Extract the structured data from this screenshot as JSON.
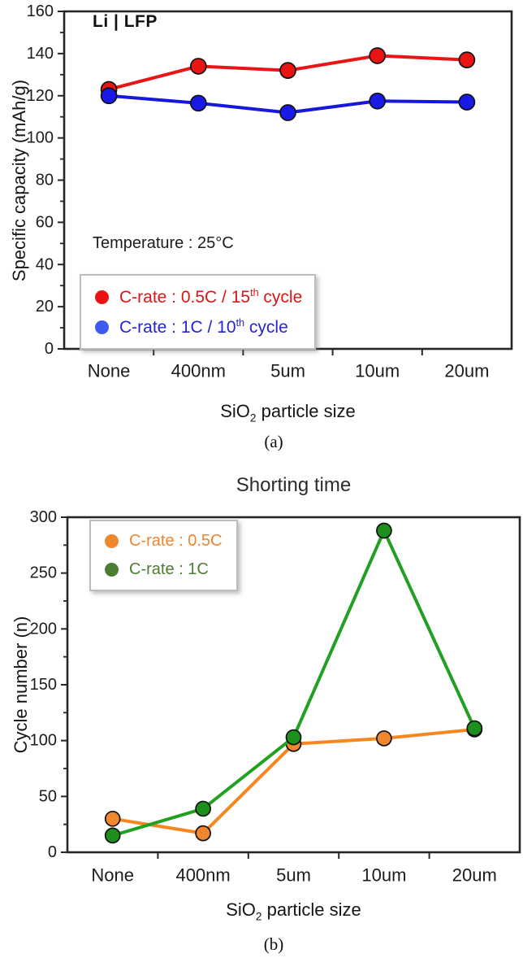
{
  "figure": {
    "background": "#ffffff",
    "axis_color": "#262626",
    "captions": {
      "a": "(a)",
      "b": "(b)"
    }
  },
  "chart_data": [
    {
      "key": "a",
      "type": "line",
      "caption": "(a)",
      "inner_title": "Li | LFP",
      "annotation": "Temperature : 25°C",
      "xlabel": "SiO2 particle size",
      "xlabel_parts": {
        "base": "SiO",
        "sub": "2",
        "rest": " particle size"
      },
      "ylabel": "Specific capacity (mAh/g)",
      "categories": [
        "None",
        "400nm",
        "5um",
        "10um",
        "20um"
      ],
      "ylim": [
        0,
        160
      ],
      "yticks": [
        0,
        20,
        40,
        60,
        80,
        100,
        120,
        140,
        160
      ],
      "yminor_step": 10,
      "grid": false,
      "legend_position": "bottom-left",
      "series": [
        {
          "label": "C-rate : 0.5C / 15th cycle",
          "label_parts": {
            "main": "C-rate : 0.5C / 15",
            "sup": "th",
            "tail": " cycle"
          },
          "line_color": "#e91515",
          "marker_color": "#e91515",
          "legend_dot_color": "#ee1111",
          "text_color": "#e01414",
          "values": [
            123,
            134,
            132,
            139,
            137
          ]
        },
        {
          "label": "C-rate : 1C / 10th cycle",
          "label_parts": {
            "main": "C-rate : 1C / 10",
            "sup": "th",
            "tail": " cycle"
          },
          "line_color": "#1717dd",
          "marker_color": "#1a1ae6",
          "legend_dot_color": "#3d5af1",
          "text_color": "#2424d2",
          "values": [
            120,
            116.5,
            112,
            117.5,
            117
          ]
        }
      ]
    },
    {
      "key": "b",
      "type": "line",
      "title": "Shorting time",
      "caption": "(b)",
      "xlabel": "SiO2 particle size",
      "xlabel_parts": {
        "base": "SiO",
        "sub": "2",
        "rest": " particle size"
      },
      "ylabel": "Cycle number (n)",
      "categories": [
        "None",
        "400nm",
        "5um",
        "10um",
        "20um"
      ],
      "ylim": [
        0,
        300
      ],
      "yticks": [
        0,
        50,
        100,
        150,
        200,
        250,
        300
      ],
      "yminor_step": 25,
      "grid": false,
      "legend_position": "top-left",
      "series": [
        {
          "label": "C-rate : 0.5C",
          "label_parts": {
            "main": "C-rate : 0.5C",
            "sup": "",
            "tail": ""
          },
          "line_color": "#f6871f",
          "marker_color": "#f0862e",
          "legend_dot_color": "#f0862e",
          "text_color": "#ef8432",
          "values": [
            30,
            17,
            97,
            102,
            110
          ]
        },
        {
          "label": "C-rate : 1C",
          "label_parts": {
            "main": "C-rate : 1C",
            "sup": "",
            "tail": ""
          },
          "line_color": "#22a022",
          "marker_color": "#1d8f1d",
          "legend_dot_color": "#4d7c33",
          "text_color": "#4d7c33",
          "values": [
            15,
            39,
            103,
            288,
            111
          ]
        }
      ]
    }
  ]
}
